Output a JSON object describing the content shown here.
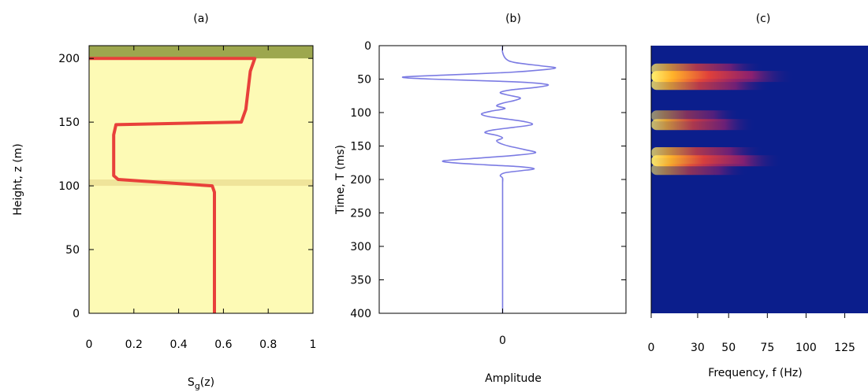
{
  "chart_data": [
    {
      "type": "line",
      "title": "(a)",
      "xlabel": "S",
      "xlabel_sub": "g",
      "xlabel_tail": "(z)",
      "ylabel": "Height, z (m)",
      "xlim": [
        0,
        1
      ],
      "ylim": [
        0,
        210
      ],
      "xticks": [
        "0",
        "0.2",
        "0.4",
        "0.6",
        "0.8",
        "1"
      ],
      "yticks": [
        "0",
        "50",
        "100",
        "150",
        "200"
      ],
      "grid": false,
      "colors": {
        "background": "#fdfab5",
        "top_band": "#9da74e",
        "interface_band": "#efe49a",
        "line": "#e8403a"
      },
      "bands": [
        {
          "y0": 200,
          "y1": 210
        },
        {
          "y0": 100,
          "y1": 105
        }
      ],
      "series": [
        {
          "x": [
            0.0,
            0.74,
            0.72,
            0.7,
            0.68,
            0.12,
            0.11,
            0.11,
            0.13,
            0.55,
            0.56,
            0.56
          ],
          "y": [
            200,
            200,
            190,
            160,
            150,
            148,
            140,
            108,
            105,
            100,
            95,
            0
          ]
        }
      ]
    },
    {
      "type": "line",
      "title": "(b)",
      "xlabel": "Amplitude",
      "ylabel": "Time, T (ms)",
      "ylim": [
        400,
        0
      ],
      "xlim": [
        -1.05,
        1.05
      ],
      "xticks": [
        "0"
      ],
      "yticks": [
        "0",
        "50",
        "100",
        "150",
        "200",
        "250",
        "300",
        "350",
        "400"
      ],
      "grid": false,
      "colors": {
        "line": "#7b7be3"
      },
      "series": [
        {
          "y": [
            0,
            10,
            20,
            25,
            30,
            33,
            36,
            40,
            44,
            47,
            50,
            54,
            58,
            62,
            66,
            70,
            74,
            78,
            82,
            86,
            90,
            94,
            98,
            102,
            106,
            110,
            114,
            118,
            122,
            126,
            130,
            134,
            138,
            142,
            146,
            150,
            155,
            160,
            164,
            168,
            172,
            175,
            178,
            181,
            184,
            187,
            190,
            194,
            198,
            205,
            215,
            400
          ],
          "x": [
            0.0,
            0.0,
            0.03,
            0.1,
            0.32,
            0.45,
            0.35,
            0.05,
            -0.5,
            -0.85,
            -0.6,
            0.1,
            0.38,
            0.3,
            0.08,
            -0.02,
            0.05,
            0.15,
            0.1,
            0.0,
            -0.05,
            0.02,
            -0.1,
            -0.18,
            -0.12,
            0.05,
            0.2,
            0.25,
            0.1,
            -0.08,
            -0.15,
            -0.05,
            0.0,
            -0.05,
            -0.02,
            0.05,
            0.18,
            0.28,
            0.1,
            -0.2,
            -0.5,
            -0.42,
            -0.15,
            0.15,
            0.27,
            0.15,
            0.02,
            -0.02,
            0.0,
            0.0,
            0.0,
            0.0
          ]
        }
      ]
    },
    {
      "type": "heatmap",
      "title": "(c)",
      "xlabel": "Frequency, f (Hz)",
      "xlim": [
        0,
        140
      ],
      "ylim": [
        400,
        0
      ],
      "xticks": [
        "0",
        "30",
        "50",
        "75",
        "100",
        "125"
      ],
      "colors": {
        "background": "#0b1e8c",
        "low": "#3a1a7a",
        "mid": "#d02850",
        "high": "#ff9a20",
        "peak": "#fff070"
      },
      "bands": [
        {
          "center": 35,
          "intensity": 0.75,
          "extent": 60
        },
        {
          "center": 46,
          "intensity": 1.0,
          "extent": 80
        },
        {
          "center": 58,
          "intensity": 0.8,
          "extent": 65
        },
        {
          "center": 105,
          "intensity": 0.55,
          "extent": 45
        },
        {
          "center": 118,
          "intensity": 0.75,
          "extent": 55
        },
        {
          "center": 160,
          "intensity": 0.75,
          "extent": 60
        },
        {
          "center": 172,
          "intensity": 0.95,
          "extent": 72
        },
        {
          "center": 185,
          "intensity": 0.6,
          "extent": 50
        }
      ]
    }
  ]
}
